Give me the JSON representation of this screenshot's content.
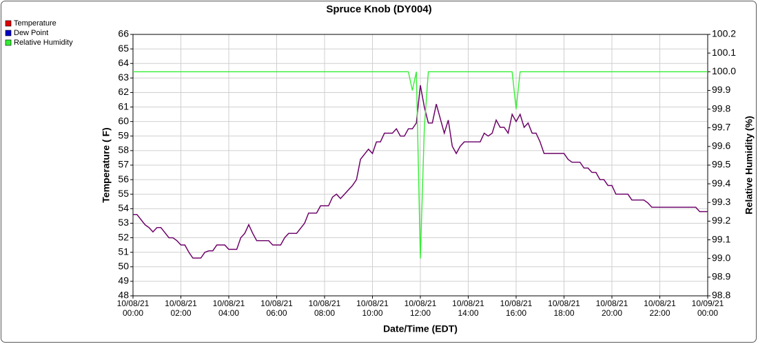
{
  "chart_data": {
    "type": "line",
    "title": "Spruce Knob (DY004)",
    "x_label": "Date/Time (EDT)",
    "y_label": "Temperature ( F)",
    "y2_label": "Relative Humidity (%)",
    "x": [
      "10/08/21 00:00",
      "10/08/21 00:10",
      "10/08/21 00:30",
      "10/08/21 00:40",
      "10/08/21 00:50",
      "10/08/21 01:00",
      "10/08/21 01:10",
      "10/08/21 01:30",
      "10/08/21 01:40",
      "10/08/21 01:50",
      "10/08/21 02:00",
      "10/08/21 02:10",
      "10/08/21 02:20",
      "10/08/21 02:30",
      "10/08/21 02:50",
      "10/08/21 03:00",
      "10/08/21 03:10",
      "10/08/21 03:20",
      "10/08/21 03:30",
      "10/08/21 03:50",
      "10/08/21 04:00",
      "10/08/21 04:20",
      "10/08/21 04:30",
      "10/08/21 04:40",
      "10/08/21 04:50",
      "10/08/21 05:00",
      "10/08/21 05:10",
      "10/08/21 05:40",
      "10/08/21 05:50",
      "10/08/21 06:10",
      "10/08/21 06:20",
      "10/08/21 06:30",
      "10/08/21 06:50",
      "10/08/21 07:10",
      "10/08/21 07:20",
      "10/08/21 07:40",
      "10/08/21 07:50",
      "10/08/21 08:10",
      "10/08/21 08:20",
      "10/08/21 08:30",
      "10/08/21 08:40",
      "10/08/21 08:50",
      "10/08/21 09:10",
      "10/08/21 09:20",
      "10/08/21 09:30",
      "10/08/21 09:50",
      "10/08/21 10:00",
      "10/08/21 10:10",
      "10/08/21 10:20",
      "10/08/21 10:30",
      "10/08/21 10:50",
      "10/08/21 11:00",
      "10/08/21 11:10",
      "10/08/21 11:20",
      "10/08/21 11:30",
      "10/08/21 11:40",
      "10/08/21 11:50",
      "10/08/21 12:00",
      "10/08/21 12:10",
      "10/08/21 12:20",
      "10/08/21 12:30",
      "10/08/21 12:40",
      "10/08/21 13:00",
      "10/08/21 13:10",
      "10/08/21 13:20",
      "10/08/21 13:30",
      "10/08/21 13:40",
      "10/08/21 13:50",
      "10/08/21 14:30",
      "10/08/21 14:40",
      "10/08/21 14:50",
      "10/08/21 15:00",
      "10/08/21 15:10",
      "10/08/21 15:20",
      "10/08/21 15:30",
      "10/08/21 15:40",
      "10/08/21 15:50",
      "10/08/21 16:00",
      "10/08/21 16:10",
      "10/08/21 16:20",
      "10/08/21 16:30",
      "10/08/21 16:40",
      "10/08/21 16:50",
      "10/08/21 17:00",
      "10/08/21 17:10",
      "10/08/21 18:00",
      "10/08/21 18:10",
      "10/08/21 18:20",
      "10/08/21 18:40",
      "10/08/21 18:50",
      "10/08/21 19:00",
      "10/08/21 19:10",
      "10/08/21 19:20",
      "10/08/21 19:30",
      "10/08/21 19:40",
      "10/08/21 19:50",
      "10/08/21 20:00",
      "10/08/21 20:10",
      "10/08/21 20:40",
      "10/08/21 20:50",
      "10/08/21 21:20",
      "10/08/21 21:30",
      "10/08/21 21:40",
      "10/08/21 23:30",
      "10/08/21 23:40",
      "10/09/21 00:00"
    ],
    "series": [
      {
        "name": "Temperature",
        "color": "#e00000",
        "values": [
          53.6,
          53.6,
          52.9,
          52.7,
          52.4,
          52.7,
          52.7,
          52.0,
          52.0,
          51.8,
          51.5,
          51.5,
          51.0,
          50.6,
          50.6,
          51.0,
          51.1,
          51.1,
          51.5,
          51.5,
          51.2,
          51.2,
          52.0,
          52.3,
          52.9,
          52.3,
          51.8,
          51.8,
          51.5,
          51.5,
          52.0,
          52.3,
          52.3,
          53.0,
          53.7,
          53.7,
          54.2,
          54.2,
          54.8,
          55.0,
          54.7,
          55.0,
          55.6,
          56.0,
          57.4,
          58.1,
          57.8,
          58.6,
          58.6,
          59.2,
          59.2,
          59.5,
          59.0,
          59.0,
          59.5,
          59.5,
          59.9,
          62.5,
          61.0,
          59.9,
          59.9,
          61.2,
          59.2,
          60.1,
          58.3,
          57.8,
          58.3,
          58.6,
          58.6,
          59.2,
          59.0,
          59.2,
          60.1,
          59.6,
          59.6,
          59.2,
          60.5,
          60.0,
          60.5,
          59.6,
          59.9,
          59.2,
          59.2,
          58.6,
          57.8,
          57.8,
          57.4,
          57.2,
          57.2,
          56.8,
          56.8,
          56.5,
          56.5,
          56.0,
          56.0,
          55.6,
          55.6,
          55.0,
          55.0,
          54.6,
          54.6,
          54.4,
          54.1,
          54.1,
          53.8,
          53.8
        ]
      },
      {
        "name": "Dew Point",
        "color": "#0000c8",
        "values": [
          53.6,
          53.6,
          52.9,
          52.7,
          52.4,
          52.7,
          52.7,
          52.0,
          52.0,
          51.8,
          51.5,
          51.5,
          51.0,
          50.6,
          50.6,
          51.0,
          51.1,
          51.1,
          51.5,
          51.5,
          51.2,
          51.2,
          52.0,
          52.3,
          52.9,
          52.3,
          51.8,
          51.8,
          51.5,
          51.5,
          52.0,
          52.3,
          52.3,
          53.0,
          53.7,
          53.7,
          54.2,
          54.2,
          54.8,
          55.0,
          54.7,
          55.0,
          55.6,
          56.0,
          57.4,
          58.1,
          57.8,
          58.6,
          58.6,
          59.2,
          59.2,
          59.5,
          59.0,
          59.0,
          59.5,
          59.5,
          59.9,
          62.5,
          61.0,
          59.9,
          59.9,
          61.2,
          59.2,
          60.1,
          58.3,
          57.8,
          58.3,
          58.6,
          58.6,
          59.2,
          59.0,
          59.2,
          60.1,
          59.6,
          59.6,
          59.2,
          60.5,
          60.0,
          60.5,
          59.6,
          59.9,
          59.2,
          59.2,
          58.6,
          57.8,
          57.8,
          57.4,
          57.2,
          57.2,
          56.8,
          56.8,
          56.5,
          56.5,
          56.0,
          56.0,
          55.6,
          55.6,
          55.0,
          55.0,
          54.6,
          54.6,
          54.4,
          54.1,
          54.1,
          53.8,
          53.8
        ]
      },
      {
        "name": "Relative Humidity",
        "color": "#33ee33",
        "axis": "y2",
        "values": [
          100,
          100,
          100,
          100,
          100,
          100,
          100,
          100,
          100,
          100,
          100,
          100,
          100,
          100,
          100,
          100,
          100,
          100,
          100,
          100,
          100,
          100,
          100,
          100,
          100,
          100,
          100,
          100,
          100,
          100,
          100,
          100,
          100,
          100,
          100,
          100,
          100,
          100,
          100,
          100,
          100,
          100,
          100,
          100,
          100,
          100,
          100,
          100,
          100,
          100,
          100,
          100,
          100,
          100,
          100,
          99.9,
          100,
          99.0,
          99.7,
          100,
          100,
          100,
          100,
          100,
          100,
          100,
          100,
          100,
          100,
          100,
          100,
          100,
          100,
          100,
          100,
          100,
          100,
          99.8,
          100,
          100,
          100,
          100,
          100,
          100,
          100,
          100,
          100,
          100,
          100,
          100,
          100,
          100,
          100,
          100,
          100,
          100,
          100,
          100,
          100,
          100,
          100,
          100,
          100,
          100,
          100,
          100
        ]
      }
    ],
    "xlim": [
      "10/08/21 00:00",
      "10/09/21 00:00"
    ],
    "xticks": [
      "10/08/21 00:00",
      "10/08/21 02:00",
      "10/08/21 04:00",
      "10/08/21 06:00",
      "10/08/21 08:00",
      "10/08/21 10:00",
      "10/08/21 12:00",
      "10/08/21 14:00",
      "10/08/21 16:00",
      "10/08/21 18:00",
      "10/08/21 20:00",
      "10/08/21 22:00",
      "10/09/21 00:00"
    ],
    "ylim": [
      48,
      66
    ],
    "yticks": [
      48,
      49,
      50,
      51,
      52,
      53,
      54,
      55,
      56,
      57,
      58,
      59,
      60,
      61,
      62,
      63,
      64,
      65,
      66
    ],
    "y2lim": [
      98.8,
      100.2
    ],
    "y2ticks": [
      98.8,
      98.9,
      {
        "value": 99,
        "label": "99.0"
      },
      99.1,
      99.2,
      99.3,
      99.4,
      99.5,
      99.6,
      99.7,
      99.8,
      99.9,
      {
        "value": 100,
        "label": "100.0"
      },
      100.1,
      100.2
    ],
    "grid": true,
    "legend": "top-left"
  }
}
